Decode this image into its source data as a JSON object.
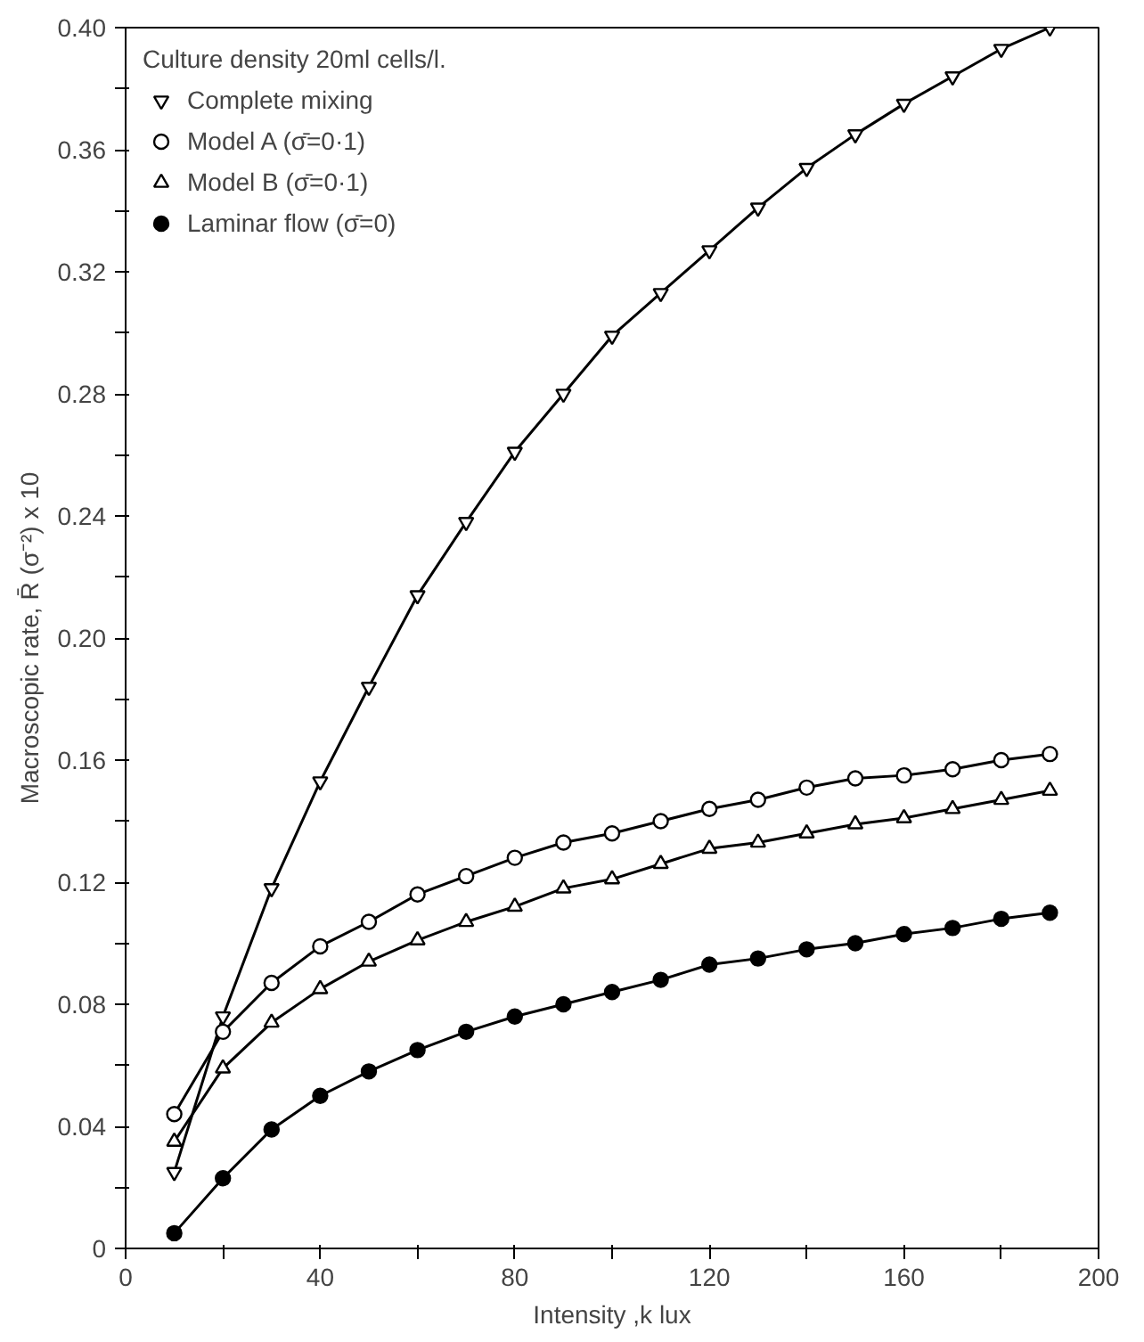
{
  "chart_data": {
    "type": "line",
    "xlabel": "Intensity ,k lux",
    "ylabel": "Macroscopic rate, R̄ (σ⁻²) x 10",
    "legend_title": "Culture density 20ml cells/l.",
    "legend": "top left",
    "grid": false,
    "line_style": "solid",
    "x": [
      10,
      20,
      30,
      40,
      50,
      60,
      70,
      80,
      90,
      100,
      110,
      120,
      130,
      140,
      150,
      160,
      170,
      180,
      190
    ],
    "xlim": [
      0,
      200
    ],
    "ylim": [
      0,
      0.4
    ],
    "xticks": [
      0,
      {
        "value": 20,
        "label": null
      },
      40,
      {
        "value": 60,
        "label": null
      },
      80,
      {
        "value": 100,
        "label": null
      },
      120,
      {
        "value": 140,
        "label": null
      },
      160,
      {
        "value": 180,
        "label": null
      },
      200
    ],
    "yticks": [
      0,
      {
        "value": 0.02,
        "label": null
      },
      {
        "value": 0.04,
        "label": "0.04"
      },
      {
        "value": 0.06,
        "label": null
      },
      {
        "value": 0.08,
        "label": "0.08"
      },
      {
        "value": 0.1,
        "label": null
      },
      {
        "value": 0.12,
        "label": "0.12"
      },
      {
        "value": 0.14,
        "label": null
      },
      {
        "value": 0.16,
        "label": "0.16"
      },
      {
        "value": 0.18,
        "label": null
      },
      {
        "value": 0.2,
        "label": "0.20"
      },
      {
        "value": 0.22,
        "label": null
      },
      {
        "value": 0.24,
        "label": "0.24"
      },
      {
        "value": 0.26,
        "label": null
      },
      {
        "value": 0.28,
        "label": "0.28"
      },
      {
        "value": 0.3,
        "label": null
      },
      {
        "value": 0.32,
        "label": "0.32"
      },
      {
        "value": 0.34,
        "label": null
      },
      {
        "value": 0.36,
        "label": "0.36"
      },
      {
        "value": 0.38,
        "label": null
      },
      {
        "value": 0.4,
        "label": "0.40"
      }
    ],
    "series": [
      {
        "name": "Complete mixing",
        "color": "#000000",
        "marker": "triangle_down_open",
        "values": [
          0.025,
          0.076,
          0.118,
          0.153,
          0.184,
          0.214,
          0.238,
          0.261,
          0.28,
          0.299,
          0.313,
          0.327,
          0.341,
          0.354,
          0.365,
          0.375,
          0.384,
          0.393,
          0.4
        ]
      },
      {
        "name": "Model A (σ̄=0·1)",
        "color": "#000000",
        "marker": "circle_open",
        "values": [
          0.044,
          0.071,
          0.087,
          0.099,
          0.107,
          0.116,
          0.122,
          0.128,
          0.133,
          0.136,
          0.14,
          0.144,
          0.147,
          0.151,
          0.154,
          0.155,
          0.157,
          0.16,
          0.162
        ]
      },
      {
        "name": "Model B (σ̄=0·1)",
        "color": "#000000",
        "marker": "triangle_open",
        "values": [
          0.035,
          0.059,
          0.074,
          0.085,
          0.094,
          0.101,
          0.107,
          0.112,
          0.118,
          0.121,
          0.126,
          0.131,
          0.133,
          0.136,
          0.139,
          0.141,
          0.144,
          0.147,
          0.15
        ]
      },
      {
        "name": "Laminar flow (σ̄=0)",
        "color": "#000000",
        "marker": "circle",
        "values": [
          0.005,
          0.023,
          0.039,
          0.05,
          0.058,
          0.065,
          0.071,
          0.076,
          0.08,
          0.084,
          0.088,
          0.093,
          0.095,
          0.098,
          0.1,
          0.103,
          0.105,
          0.108,
          0.11
        ]
      }
    ]
  }
}
